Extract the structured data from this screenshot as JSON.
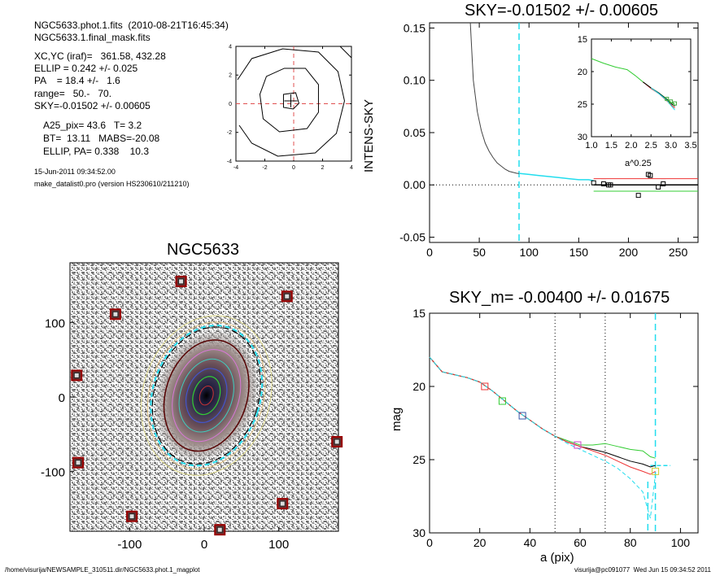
{
  "header": {
    "lines": [
      "NGC5633.phot.1.fits  (2010-08-21T16:45:34)",
      "NGC5633.1.final_mask.fits",
      "XC,YC (iraf)=   361.58, 432.28",
      "ELLIP = 0.242 +/- 0.025",
      "PA    = 18.4 +/-   1.6",
      "range=   50.-   70.",
      "SKY=-0.01502 +/- 0.00605",
      "A25_pix= 43.6   T= 3.2",
      "BT=  13.11   MABS=-20.08",
      "ELLIP, PA= 0.338    10.3",
      "15-Jun-2011 09:34:52.00",
      "make_datalist0.pro (version HS230610/211210)"
    ]
  },
  "footer": {
    "left": "/home/visurija/NEWSAMPLE_310511.dir/NGC5633.phot.1_magplot",
    "right": "visurija@pc091077  Wed Jun 15 09:34:52 2011"
  },
  "colors": {
    "cyan": "#22ddee",
    "red": "#ee3333",
    "green": "#33cc33",
    "dark_red": "#990000",
    "grey_bg": "#8a8a8a"
  },
  "chart_data": [
    {
      "id": "contour",
      "type": "contour",
      "xlim": [
        -4,
        4
      ],
      "ylim": [
        -4,
        4
      ],
      "xticks": [
        -4,
        -2,
        0,
        2,
        4
      ],
      "yticks": [
        -4,
        -2,
        0,
        2,
        4
      ],
      "tick_labels_x": [
        "-4",
        "-2",
        "0",
        "2",
        "4"
      ],
      "tick_labels_y": [
        "-4",
        "-2",
        "0",
        "2",
        "4"
      ]
    },
    {
      "id": "image",
      "type": "image",
      "title": "NGC5633",
      "xlim": [
        -180,
        180
      ],
      "ylim": [
        -180,
        180
      ],
      "xticks": [
        -100,
        0,
        100
      ],
      "yticks": [
        -100,
        0,
        100
      ],
      "tick_labels_x": [
        "-100",
        "0",
        "100"
      ],
      "tick_labels_y": [
        "-100",
        "0",
        "100"
      ],
      "masked_boxes": [
        [
          -31,
          155
        ],
        [
          -119,
          111
        ],
        [
          111,
          135
        ],
        [
          -171,
          29
        ],
        [
          -169,
          -88
        ],
        [
          -97,
          -160
        ],
        [
          105,
          -143
        ],
        [
          178,
          -60
        ],
        [
          21,
          -178
        ]
      ]
    },
    {
      "id": "sky",
      "type": "line",
      "title": "SKY=-0.01502 +/- 0.00605",
      "ylabel": "INTENS-SKY",
      "xlim": [
        0,
        270
      ],
      "ylim": [
        -0.055,
        0.155
      ],
      "xticks": [
        0,
        50,
        100,
        150,
        200,
        250
      ],
      "yticks": [
        -0.05,
        0.0,
        0.05,
        0.1,
        0.15
      ],
      "tick_labels_x": [
        "0",
        "50",
        "100",
        "150",
        "200",
        "250"
      ],
      "tick_labels_y": [
        "-0.05",
        "0.00",
        "0.05",
        "0.10",
        "0.15"
      ],
      "vline": 90,
      "black_x": [
        41,
        44,
        48,
        52,
        56,
        60,
        64,
        68,
        72,
        76,
        80,
        84,
        88,
        90
      ],
      "black_y": [
        0.155,
        0.1,
        0.07,
        0.052,
        0.04,
        0.032,
        0.026,
        0.021,
        0.018,
        0.015,
        0.013,
        0.012,
        0.011,
        0.011
      ],
      "cyan_x": [
        90,
        100,
        110,
        120,
        130,
        140,
        150,
        160,
        165
      ],
      "cyan_y": [
        0.011,
        0.01,
        0.009,
        0.008,
        0.007,
        0.006,
        0.005,
        0.005,
        0.004
      ],
      "boxes_x": [
        165,
        175,
        180,
        182,
        210,
        220,
        222,
        230,
        235
      ],
      "boxes_y": [
        0.002,
        0.001,
        0.0,
        0.0,
        -0.01,
        0.01,
        0.009,
        -0.002,
        0.001
      ],
      "inset": {
        "xlabel": "a^0.25",
        "xlim": [
          1.0,
          3.5
        ],
        "ylim": [
          15,
          30
        ],
        "xticks": [
          1.0,
          1.5,
          2.0,
          2.5,
          3.0,
          3.5
        ],
        "yticks": [
          15,
          20,
          25,
          30
        ],
        "tick_labels_x": [
          "1.0",
          "1.5",
          "2.0",
          "2.5",
          "3.0",
          "3.5"
        ],
        "tick_labels_y": [
          "15",
          "20",
          "25",
          "30"
        ]
      }
    },
    {
      "id": "mag",
      "type": "line",
      "title": "SKY_m= -0.00400 +/- 0.01675",
      "xlabel": "a (pix)",
      "ylabel": "mag",
      "xlim": [
        0,
        107
      ],
      "ylim": [
        30,
        15
      ],
      "xticks": [
        0,
        20,
        40,
        60,
        80,
        100
      ],
      "yticks": [
        15,
        20,
        25,
        30
      ],
      "tick_labels_x": [
        "0",
        "20",
        "40",
        "60",
        "80",
        "100"
      ],
      "tick_labels_y": [
        "15",
        "20",
        "25",
        "30"
      ],
      "vlines_dotted": [
        50,
        70
      ],
      "vlines_dashed": [
        90
      ],
      "x": [
        0,
        5,
        10,
        15,
        20,
        25,
        30,
        35,
        40,
        45,
        50,
        55,
        60,
        65,
        70,
        75,
        80,
        85,
        88,
        90
      ],
      "series": [
        {
          "color": "green",
          "values": [
            18.0,
            19.0,
            19.2,
            19.4,
            19.7,
            20.3,
            21.0,
            21.7,
            22.3,
            22.9,
            23.4,
            23.7,
            24.0,
            24.0,
            23.9,
            24.1,
            24.3,
            24.4,
            24.8,
            24.9
          ]
        },
        {
          "color": "black",
          "values": [
            18.0,
            19.0,
            19.2,
            19.4,
            19.7,
            20.3,
            21.0,
            21.7,
            22.3,
            22.9,
            23.4,
            23.8,
            24.1,
            24.3,
            24.5,
            24.8,
            25.1,
            25.3,
            25.5,
            25.4
          ]
        },
        {
          "color": "red",
          "values": [
            18.0,
            19.0,
            19.2,
            19.4,
            19.7,
            20.3,
            21.0,
            21.7,
            22.3,
            22.9,
            23.4,
            23.8,
            24.1,
            24.4,
            24.7,
            25.1,
            25.5,
            25.8,
            26.0,
            25.8
          ]
        },
        {
          "color": "cyan",
          "values": [
            18.0,
            19.0,
            19.2,
            19.4,
            19.7,
            20.3,
            21.0,
            21.7,
            22.3,
            22.9,
            23.4,
            23.9,
            24.3,
            24.7,
            25.1,
            25.6,
            26.3,
            27.2,
            29.0,
            26.0
          ]
        }
      ],
      "markers": [
        {
          "x": 22,
          "y": 20.0,
          "color": "red"
        },
        {
          "x": 29,
          "y": 21.0,
          "color": "green"
        },
        {
          "x": 37,
          "y": 22.0,
          "color": "blue"
        },
        {
          "x": 59,
          "y": 24.0,
          "color": "magenta"
        },
        {
          "x": 90,
          "y": 25.8,
          "color": "yellow"
        }
      ]
    }
  ]
}
